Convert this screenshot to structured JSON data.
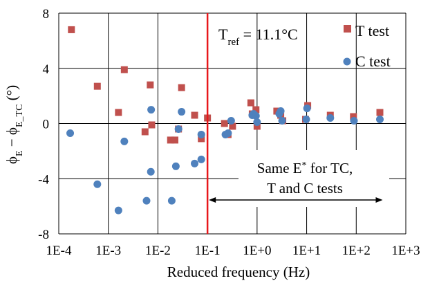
{
  "chart_data": {
    "type": "scatter",
    "xlabel": "Reduced frequency (Hz)",
    "ylabel_main": "ϕ",
    "ylabel_sub1": "E",
    "ylabel_mid": " − ϕ",
    "ylabel_sub2": "E_TC",
    "ylabel_unit": " (°)",
    "x_scale": "log",
    "xlim": [
      0.0001,
      1000
    ],
    "ylim": [
      -8,
      8
    ],
    "x_ticks": [
      "1E-4",
      "1E-3",
      "1E-2",
      "1E-1",
      "1E+0",
      "1E+1",
      "1E+2",
      "1E+3"
    ],
    "y_ticks": [
      "8",
      "4",
      "0",
      "-4",
      "-8"
    ],
    "y_tick_values": [
      8,
      4,
      0,
      -4,
      -8
    ],
    "grid": true,
    "reference_line": {
      "x": 0.1,
      "color": "#e8171b"
    },
    "tref_label_main": "T",
    "tref_label_sub": "ref",
    "tref_label_rest": " = 11.1°C",
    "annotation_line1_main": "Same E",
    "annotation_line1_sup": "*",
    "annotation_line1_rest": " for TC,",
    "annotation_line2": "T and C tests",
    "arrow_range": [
      0.1,
      300
    ],
    "series": [
      {
        "name": "T test",
        "marker": "square",
        "color": "#c0504d",
        "points": [
          [
            0.00018,
            6.8
          ],
          [
            0.0006,
            2.7
          ],
          [
            0.0016,
            0.8
          ],
          [
            0.0021,
            3.9
          ],
          [
            0.0055,
            -0.6
          ],
          [
            0.007,
            2.8
          ],
          [
            0.0075,
            -0.1
          ],
          [
            0.018,
            -1.2
          ],
          [
            0.022,
            -1.2
          ],
          [
            0.026,
            -0.4
          ],
          [
            0.03,
            2.6
          ],
          [
            0.055,
            0.6
          ],
          [
            0.075,
            -1.1
          ],
          [
            0.1,
            0.4
          ],
          [
            0.22,
            0.0
          ],
          [
            0.26,
            -0.8
          ],
          [
            0.32,
            -0.2
          ],
          [
            0.75,
            1.5
          ],
          [
            0.8,
            0.7
          ],
          [
            0.95,
            1.0
          ],
          [
            1.0,
            -0.2
          ],
          [
            2.5,
            0.9
          ],
          [
            3.0,
            0.6
          ],
          [
            3.3,
            0.2
          ],
          [
            9.5,
            0.3
          ],
          [
            10.5,
            1.3
          ],
          [
            30,
            0.6
          ],
          [
            88,
            0.5
          ],
          [
            300,
            0.8
          ]
        ]
      },
      {
        "name": "C test",
        "marker": "circle",
        "color": "#4f81bd",
        "points": [
          [
            0.00017,
            -0.7
          ],
          [
            0.0006,
            -4.4
          ],
          [
            0.0016,
            -6.3
          ],
          [
            0.0021,
            -1.3
          ],
          [
            0.0059,
            -5.6
          ],
          [
            0.0072,
            -3.5
          ],
          [
            0.0073,
            1.0
          ],
          [
            0.019,
            -5.6
          ],
          [
            0.023,
            -3.1
          ],
          [
            0.026,
            -0.4
          ],
          [
            0.03,
            0.85
          ],
          [
            0.055,
            -2.9
          ],
          [
            0.075,
            -0.8
          ],
          [
            0.075,
            -2.6
          ],
          [
            0.23,
            -0.8
          ],
          [
            0.26,
            -0.7
          ],
          [
            0.3,
            0.2
          ],
          [
            0.8,
            0.6
          ],
          [
            0.85,
            0.7
          ],
          [
            0.95,
            0.55
          ],
          [
            1.0,
            0.1
          ],
          [
            2.8,
            0.7
          ],
          [
            3.0,
            0.9
          ],
          [
            3.2,
            0.2
          ],
          [
            9.8,
            0.3
          ],
          [
            10.2,
            1.1
          ],
          [
            30,
            0.4
          ],
          [
            90,
            0.2
          ],
          [
            300,
            0.3
          ]
        ]
      }
    ]
  }
}
